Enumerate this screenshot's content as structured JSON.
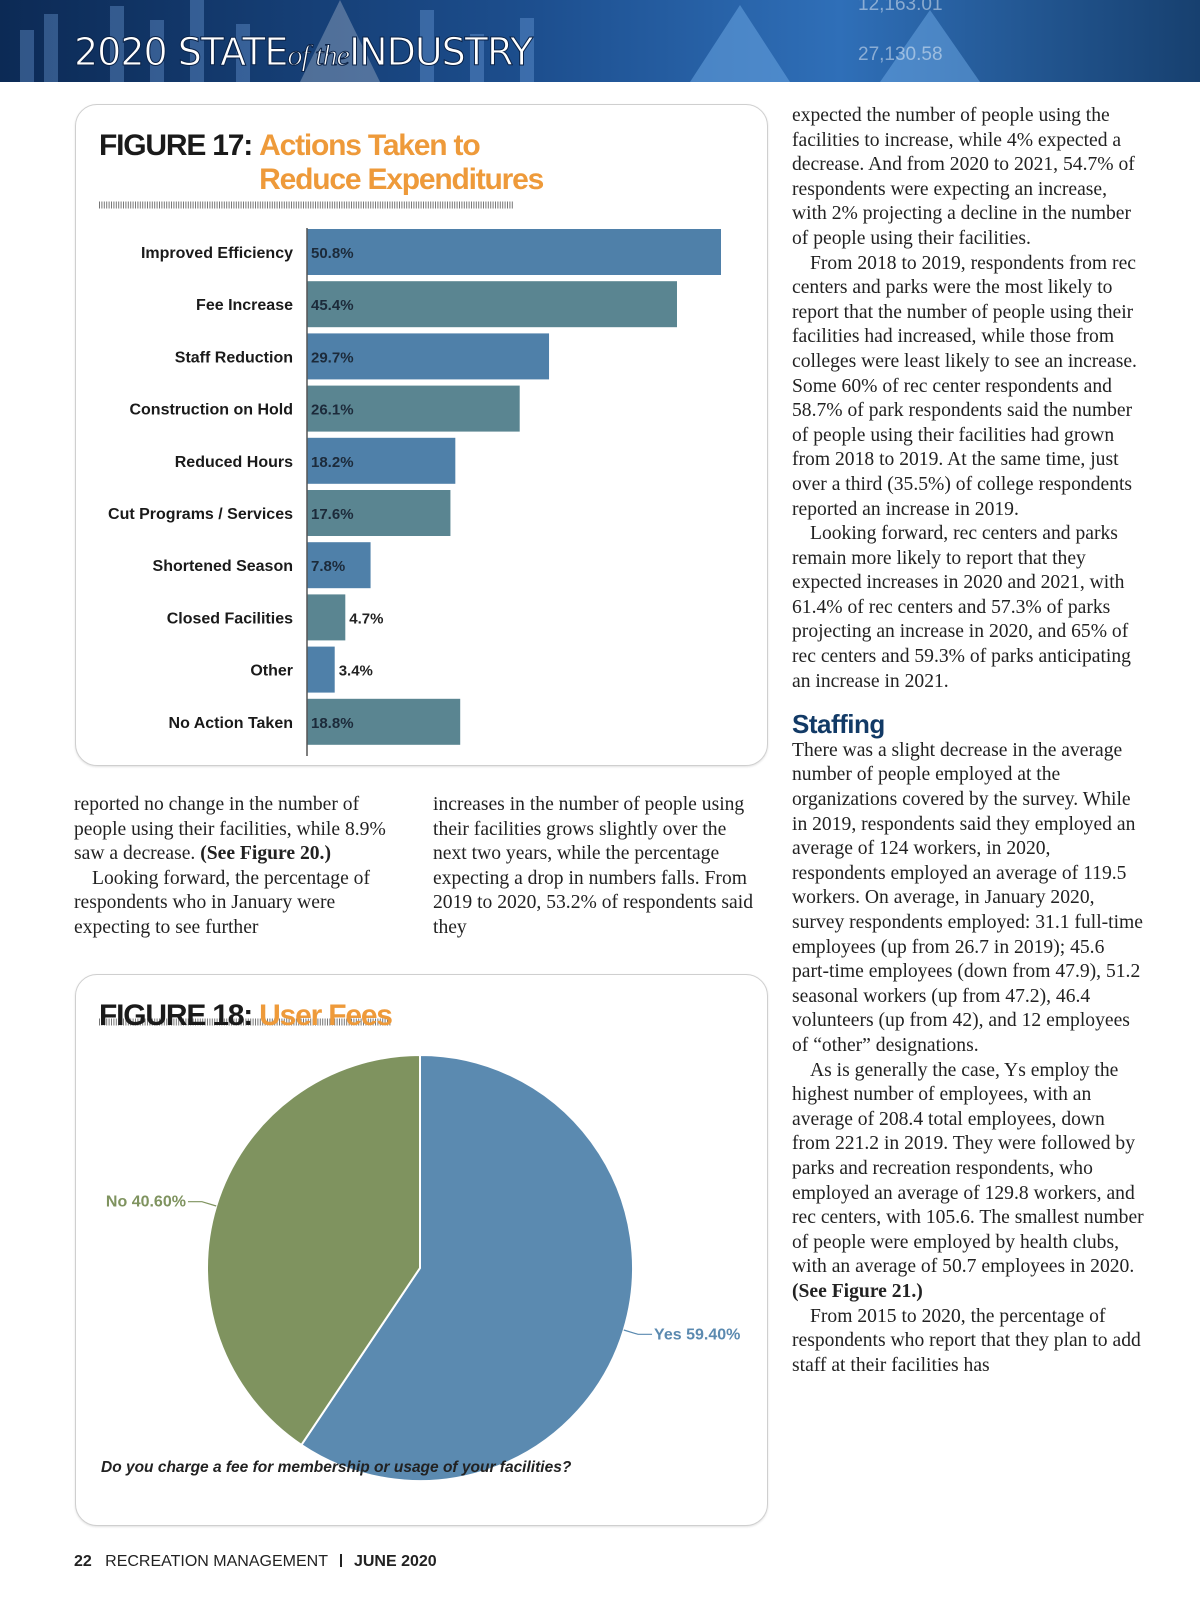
{
  "header": {
    "year_state": "2020 STATE",
    "of_the": "of the",
    "industry": "INDUSTRY",
    "ticker": [
      "12,163.01",
      "27,130.58"
    ]
  },
  "chart_data": [
    {
      "type": "bar",
      "orientation": "horizontal",
      "figure_label": "FIGURE 17:",
      "title": "Actions Taken to Reduce Expenditures",
      "categories": [
        "Improved Efficiency",
        "Fee Increase",
        "Staff Reduction",
        "Construction on Hold",
        "Reduced Hours",
        "Cut Programs / Services",
        "Shortened Season",
        "Closed Facilities",
        "Other",
        "No Action Taken"
      ],
      "values": [
        50.8,
        45.4,
        29.7,
        26.1,
        18.2,
        17.6,
        7.8,
        4.7,
        3.4,
        18.8
      ],
      "value_labels": [
        "50.8%",
        "45.4%",
        "29.7%",
        "26.1%",
        "18.2%",
        "17.6%",
        "7.8%",
        "4.7%",
        "3.4%",
        "18.8%"
      ],
      "colors": [
        "#4f80a9",
        "#5a8591"
      ]
    },
    {
      "type": "pie",
      "figure_label": "FIGURE 18:",
      "title": "User Fees",
      "categories": [
        "Yes",
        "No"
      ],
      "values": [
        59.4,
        40.6
      ],
      "value_labels": [
        "59.40%",
        "40.60%"
      ],
      "colors": [
        "#5b8ab0",
        "#7f935f"
      ],
      "caption": "Do you charge a fee for membership or usage of your facilities?"
    }
  ],
  "columns": {
    "left": {
      "p1": "reported no change in the number of people using their facilities, while 8.9% saw a decrease.",
      "p1_ref": "(See Figure 20.)",
      "p2": "Looking forward, the percentage of respondents who in January were expecting to see further"
    },
    "middle": {
      "p1": "increases in the number of people using their facilities grows slightly over the next two years, while the percentage expecting a drop in numbers falls. From 2019 to 2020, 53.2% of respondents said they"
    },
    "right": {
      "p1": "expected the number of people using the facilities to increase, while 4% expected a decrease. And from 2020 to 2021, 54.7% of respondents were expecting an increase, with 2% projecting a decline in the number of people using their facilities.",
      "p2": "From 2018 to 2019, respondents from rec centers and parks were the most likely to report that the number of people using their facilities had increased, while those from colleges were least likely to see an increase. Some 60% of rec center respondents and 58.7% of park respondents said the number of people using their facilities had grown from 2018 to 2019. At the same time, just over a third (35.5%) of college respondents reported an increase in 2019.",
      "p3": "Looking forward, rec centers and parks remain more likely to report that they expected increases in 2020 and 2021, with 61.4% of rec centers and 57.3% of parks projecting an increase in 2020, and 65% of rec centers and 59.3% of parks anticipating an increase in 2021.",
      "heading": "Staffing",
      "p4": "There was a slight decrease in the average number of people employed at the organizations covered by the survey. While in 2019, respondents said they employed an average of 124 workers, in 2020, respondents employed an average of 119.5 workers. On average, in January 2020, survey respondents employed: 31.1 full-time employees (up from 26.7 in 2019); 45.6 part-time employees (down from 47.9), 51.2 seasonal workers (up from 47.2), 46.4 volunteers (up from 42), and 12 employees of “other” designations.",
      "p5": "As is generally the case, Ys employ the highest number of employees, with an average of 208.4 total employees, down from 221.2 in 2019. They were followed by parks and recreation respondents, who employed an average of 129.8 workers, and rec centers, with 105.6. The smallest number of people were employed by health clubs, with an average of 50.7 employees in 2020.",
      "p5_ref": "(See Figure 21.)",
      "p6": "From 2015 to 2020, the percentage of respondents who report that they plan to add staff at their facilities has"
    }
  },
  "footer": {
    "page": "22",
    "magazine": "RECREATION MANAGEMENT",
    "issue": "JUNE 2020"
  }
}
